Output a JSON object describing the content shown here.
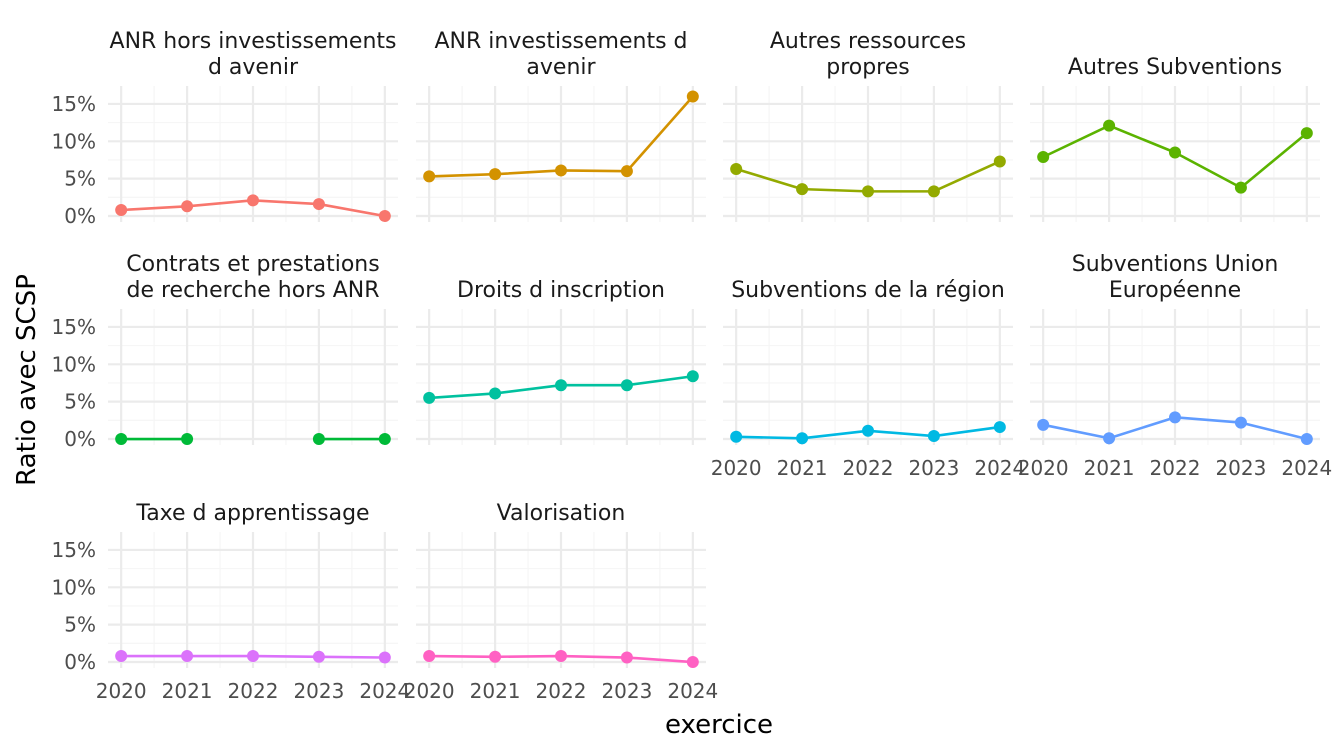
{
  "chart_data": {
    "type": "line",
    "xlabel": "exercice",
    "ylabel": "Ratio avec SCSP",
    "x": [
      2020,
      2021,
      2022,
      2023,
      2024
    ],
    "x_ticks": [
      "2020",
      "2021",
      "2022",
      "2023",
      "2024"
    ],
    "y_ticks": [
      "0%",
      "5%",
      "10%",
      "15%"
    ],
    "ylim": [
      0,
      16
    ],
    "grid": true,
    "facets": [
      {
        "name": "ANR hors investissements d avenir",
        "strip": [
          "ANR hors investissements",
          "d avenir"
        ],
        "color": "#F8766D",
        "values": [
          0.8,
          1.3,
          2.1,
          1.6,
          0.0
        ]
      },
      {
        "name": "ANR investissements d avenir",
        "strip": [
          "ANR investissements d",
          "avenir"
        ],
        "color": "#D39200",
        "values": [
          5.3,
          5.6,
          6.1,
          6.0,
          16.0
        ]
      },
      {
        "name": "Autres ressources propres",
        "strip": [
          "Autres ressources",
          "propres"
        ],
        "color": "#93AA00",
        "values": [
          6.3,
          3.6,
          3.3,
          3.3,
          7.3
        ]
      },
      {
        "name": "Autres Subventions",
        "strip": [
          "Autres Subventions"
        ],
        "color": "#5BB300",
        "values": [
          7.9,
          12.1,
          8.5,
          3.8,
          11.1
        ]
      },
      {
        "name": "Contrats et prestations de recherche hors ANR",
        "strip": [
          "Contrats et prestations",
          "de recherche hors ANR"
        ],
        "color": "#00BA38",
        "values": [
          0.0,
          0.0,
          null,
          0.0,
          0.0
        ]
      },
      {
        "name": "Droits d inscription",
        "strip": [
          "Droits d inscription"
        ],
        "color": "#00C19F",
        "values": [
          5.5,
          6.1,
          7.2,
          7.2,
          8.4
        ]
      },
      {
        "name": "Subventions de la région",
        "strip": [
          "Subventions de la région"
        ],
        "color": "#00B9E3",
        "values": [
          0.3,
          0.1,
          1.1,
          0.4,
          1.6
        ]
      },
      {
        "name": "Subventions Union Européenne",
        "strip": [
          "Subventions Union",
          "Européenne"
        ],
        "color": "#619CFF",
        "values": [
          1.9,
          0.1,
          2.9,
          2.2,
          0.0
        ]
      },
      {
        "name": "Taxe d apprentissage",
        "strip": [
          "Taxe d apprentissage"
        ],
        "color": "#DB72FB",
        "values": [
          0.8,
          0.8,
          0.8,
          0.7,
          0.6
        ]
      },
      {
        "name": "Valorisation",
        "strip": [
          "Valorisation"
        ],
        "color": "#FF61C3",
        "values": [
          0.8,
          0.7,
          0.8,
          0.6,
          0.0
        ]
      }
    ]
  }
}
